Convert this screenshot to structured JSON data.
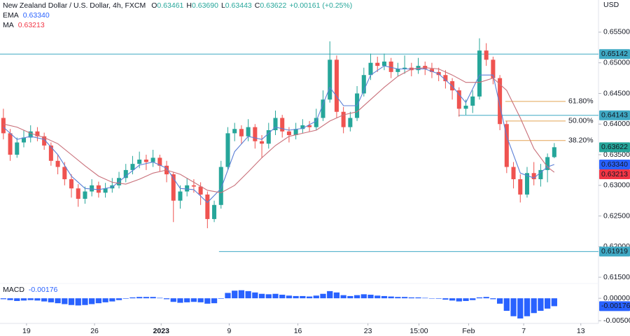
{
  "chart_data": {
    "type": "candlestick",
    "title": "New Zealand Dollar / U.S. Dollar, 4h, FXCM",
    "ohlc_legend": [
      {
        "key": "O",
        "value": "0.63461"
      },
      {
        "key": "H",
        "value": "0.63690"
      },
      {
        "key": "L",
        "value": "0.63443"
      },
      {
        "key": "C",
        "value": "0.63622"
      }
    ],
    "change": "+0.00161 (+0.25%)",
    "axis_unit": "USD",
    "up_color": "#26a69a",
    "down_color": "#ef5350",
    "xlim": [
      0,
      88
    ],
    "xticks": [
      {
        "value": 3.9,
        "label": "19"
      },
      {
        "value": 13.9,
        "label": "26"
      },
      {
        "value": 23.7,
        "label": "2023"
      },
      {
        "value": 33.7,
        "label": "9"
      },
      {
        "value": 43.8,
        "label": "16"
      },
      {
        "value": 54.1,
        "label": "23"
      },
      {
        "value": 61.6,
        "label": "15:00"
      },
      {
        "value": 68.9,
        "label": "Feb"
      },
      {
        "value": 77,
        "label": "7"
      },
      {
        "value": 85.4,
        "label": "13"
      }
    ],
    "ylim": [
      0.61398,
      0.66025
    ],
    "yticks": [
      {
        "value": 0.655,
        "label": "0.65500"
      },
      {
        "value": 0.65,
        "label": "0.65000"
      },
      {
        "value": 0.645,
        "label": "0.64500"
      },
      {
        "value": 0.64,
        "label": "0.64000"
      },
      {
        "value": 0.635,
        "label": "0.63500"
      },
      {
        "value": 0.63,
        "label": "0.63000"
      },
      {
        "value": 0.625,
        "label": "0.62500"
      },
      {
        "value": 0.62,
        "label": "0.62000"
      },
      {
        "value": 0.615,
        "label": "0.61500"
      }
    ],
    "grid": false,
    "open": [
      0.641,
      0.6385,
      0.635,
      0.637,
      0.6378,
      0.6388,
      0.638,
      0.6365,
      0.634,
      0.633,
      0.631,
      0.6295,
      0.6278,
      0.629,
      0.63,
      0.6288,
      0.6295,
      0.63,
      0.6312,
      0.6325,
      0.6335,
      0.6342,
      0.6338,
      0.6345,
      0.6332,
      0.6318,
      0.6275,
      0.629,
      0.63,
      0.6298,
      0.6285,
      0.6245,
      0.6268,
      0.633,
      0.6385,
      0.6392,
      0.638,
      0.6395,
      0.6372,
      0.6368,
      0.639,
      0.641,
      0.6388,
      0.6382,
      0.6392,
      0.6398,
      0.6395,
      0.641,
      0.644,
      0.6505,
      0.642,
      0.6395,
      0.641,
      0.645,
      0.648,
      0.65,
      0.6495,
      0.6502,
      0.6485,
      0.649,
      0.6492,
      0.6488,
      0.6495,
      0.649,
      0.6485,
      0.648,
      0.647,
      0.6455,
      0.6425,
      0.643,
      0.6445,
      0.652,
      0.6505,
      0.6475,
      0.64,
      0.633,
      0.631,
      0.6285,
      0.632,
      0.631,
      0.6325,
      0.63461
    ],
    "high": [
      0.6425,
      0.6392,
      0.6378,
      0.639,
      0.6398,
      0.6395,
      0.6386,
      0.637,
      0.635,
      0.6338,
      0.6318,
      0.6302,
      0.6298,
      0.631,
      0.6306,
      0.6304,
      0.6312,
      0.6322,
      0.6335,
      0.6348,
      0.6355,
      0.635,
      0.6358,
      0.635,
      0.634,
      0.6322,
      0.63,
      0.6312,
      0.631,
      0.6305,
      0.629,
      0.6275,
      0.634,
      0.6395,
      0.6402,
      0.6398,
      0.6408,
      0.64,
      0.6382,
      0.6402,
      0.6422,
      0.6415,
      0.6395,
      0.6402,
      0.6408,
      0.6405,
      0.6425,
      0.6455,
      0.6535,
      0.6512,
      0.6428,
      0.642,
      0.6462,
      0.6492,
      0.6515,
      0.651,
      0.6515,
      0.6508,
      0.65,
      0.6512,
      0.65,
      0.6508,
      0.6502,
      0.65,
      0.6492,
      0.6488,
      0.6475,
      0.646,
      0.644,
      0.6455,
      0.654,
      0.6532,
      0.651,
      0.648,
      0.6405,
      0.6338,
      0.6318,
      0.633,
      0.6338,
      0.6335,
      0.6352,
      0.6369
    ],
    "low": [
      0.6375,
      0.634,
      0.6345,
      0.6362,
      0.637,
      0.6372,
      0.6358,
      0.6332,
      0.6318,
      0.63,
      0.628,
      0.6265,
      0.627,
      0.6282,
      0.628,
      0.628,
      0.6288,
      0.6295,
      0.6305,
      0.6318,
      0.6328,
      0.6325,
      0.633,
      0.6322,
      0.6305,
      0.624,
      0.6262,
      0.6282,
      0.6288,
      0.6268,
      0.623,
      0.624,
      0.6262,
      0.6325,
      0.6372,
      0.6368,
      0.6372,
      0.636,
      0.6345,
      0.636,
      0.6382,
      0.6378,
      0.637,
      0.6375,
      0.6385,
      0.6388,
      0.639,
      0.6405,
      0.6435,
      0.641,
      0.6385,
      0.6388,
      0.6405,
      0.6445,
      0.6472,
      0.6485,
      0.6488,
      0.6475,
      0.6478,
      0.6482,
      0.6478,
      0.6482,
      0.648,
      0.6475,
      0.647,
      0.6458,
      0.644,
      0.6412,
      0.6415,
      0.6418,
      0.644,
      0.6495,
      0.6465,
      0.639,
      0.632,
      0.6295,
      0.6272,
      0.628,
      0.63,
      0.6298,
      0.6305,
      0.63443
    ],
    "close": [
      0.6385,
      0.635,
      0.637,
      0.6378,
      0.6388,
      0.638,
      0.6365,
      0.634,
      0.633,
      0.631,
      0.6295,
      0.6278,
      0.629,
      0.63,
      0.6288,
      0.6295,
      0.63,
      0.6312,
      0.6325,
      0.6335,
      0.6342,
      0.6338,
      0.6345,
      0.6332,
      0.6318,
      0.6275,
      0.629,
      0.63,
      0.6298,
      0.6285,
      0.6245,
      0.6268,
      0.633,
      0.6385,
      0.6392,
      0.638,
      0.6395,
      0.6372,
      0.6368,
      0.639,
      0.641,
      0.6388,
      0.6382,
      0.6392,
      0.6398,
      0.6395,
      0.641,
      0.644,
      0.6505,
      0.642,
      0.6395,
      0.641,
      0.645,
      0.648,
      0.65,
      0.6495,
      0.6502,
      0.6485,
      0.649,
      0.6492,
      0.6488,
      0.6495,
      0.649,
      0.6485,
      0.648,
      0.647,
      0.6455,
      0.6425,
      0.643,
      0.6445,
      0.652,
      0.6505,
      0.6475,
      0.64,
      0.633,
      0.631,
      0.6285,
      0.632,
      0.631,
      0.6325,
      0.63461,
      0.63622
    ],
    "last_label": {
      "value": 0.63622,
      "label": "0.63622"
    },
    "line_x": [
      0.5,
      2.5,
      4.5,
      6.5,
      8.5,
      10.5,
      12.5,
      14.5,
      16.5,
      18.5,
      20.5,
      22.5,
      24.5,
      26.5,
      28.5,
      30.5,
      32.5,
      34.5,
      36.5,
      38.5,
      40.5,
      42.5,
      44.5,
      46.5,
      48.5,
      50.5,
      52.5,
      54.5,
      56.5,
      58.5,
      60.5,
      62.5,
      64.5,
      66.5,
      68.5,
      70.5,
      72.5,
      74.5,
      76.5,
      78.5,
      80.5,
      81.5
    ],
    "overlays": [
      {
        "name": "EMA",
        "color": "#5b7fd6",
        "tag_color": "#2962ff",
        "last_label": "0.63340",
        "values": [
          0.6395,
          0.6375,
          0.638,
          0.6375,
          0.635,
          0.6315,
          0.6295,
          0.6293,
          0.6297,
          0.6315,
          0.6333,
          0.6338,
          0.6328,
          0.6295,
          0.6293,
          0.6272,
          0.6295,
          0.6355,
          0.638,
          0.6375,
          0.6395,
          0.639,
          0.6393,
          0.6405,
          0.646,
          0.643,
          0.643,
          0.648,
          0.6495,
          0.649,
          0.649,
          0.649,
          0.6482,
          0.6462,
          0.6435,
          0.648,
          0.648,
          0.638,
          0.632,
          0.6312,
          0.633,
          0.6334
        ]
      },
      {
        "name": "MA",
        "color": "#c9707a",
        "tag_color": "#f23645",
        "last_label": "0.63213",
        "values": [
          0.64,
          0.6395,
          0.6385,
          0.6378,
          0.6368,
          0.635,
          0.6332,
          0.6315,
          0.6305,
          0.6302,
          0.631,
          0.632,
          0.6325,
          0.6318,
          0.6305,
          0.6292,
          0.6288,
          0.63,
          0.6322,
          0.6345,
          0.6365,
          0.638,
          0.6385,
          0.639,
          0.6405,
          0.6415,
          0.642,
          0.644,
          0.646,
          0.6478,
          0.649,
          0.6492,
          0.649,
          0.648,
          0.6468,
          0.6468,
          0.6475,
          0.6455,
          0.641,
          0.636,
          0.633,
          0.63213
        ]
      }
    ],
    "levels": [
      {
        "value": 0.65142,
        "label": "0.65142",
        "start": 0
      },
      {
        "value": 0.64143,
        "label": "0.64143",
        "start": 67.4
      },
      {
        "value": 0.61919,
        "label": "0.61919",
        "start": 32.2
      }
    ],
    "level_color": "#3fa9c4",
    "fib_color": "#e3a455",
    "fib_start": 74.3,
    "fib_levels": [
      {
        "ratio": 61.8,
        "label": "61.80%",
        "price": 0.6437
      },
      {
        "ratio": 50,
        "label": "50.00%",
        "price": 0.6405
      },
      {
        "ratio": 38.2,
        "label": "38.20%",
        "price": 0.63731
      }
    ],
    "macd": {
      "name": "MACD",
      "last_label": "-0.00176",
      "color": "#2962ff",
      "ylim": [
        -0.0056,
        0.0033
      ],
      "yticks": [
        {
          "value": 0,
          "label": "0.00000"
        },
        {
          "value": -0.005,
          "label": "-0.00500"
        }
      ],
      "tag": {
        "value": -0.00176,
        "label": "-0.00176"
      },
      "values": [
        -0.0002,
        -0.0004,
        -0.0006,
        -0.0005,
        -0.0004,
        -0.0005,
        -0.0007,
        -0.0009,
        -0.0011,
        -0.0013,
        -0.0015,
        -0.0016,
        -0.0015,
        -0.0013,
        -0.0011,
        -0.0009,
        -0.0007,
        -0.0004,
        -0.0001,
        0.0002,
        0.0003,
        0.0003,
        0.0003,
        0.0001,
        -0.0002,
        -0.0008,
        -0.001,
        -0.0009,
        -0.0008,
        -0.0009,
        -0.0012,
        -0.0011,
        -0.0001,
        0.0012,
        0.0017,
        0.0018,
        0.0016,
        0.0013,
        0.001,
        0.0009,
        0.001,
        0.0008,
        0.0006,
        0.0005,
        0.0005,
        0.0004,
        0.0006,
        0.001,
        0.0016,
        0.0013,
        0.0007,
        0.0005,
        0.0007,
        0.0009,
        0.0008,
        0.0006,
        0.0005,
        0.0004,
        0.0003,
        0.0003,
        0.0002,
        0.0002,
        0.0001,
        0,
        -0.0001,
        -0.0003,
        -0.0005,
        -0.0007,
        -0.0006,
        -0.0004,
        0.0002,
        0.0003,
        -0.0002,
        -0.0012,
        -0.0028,
        -0.004,
        -0.0045,
        -0.004,
        -0.0033,
        -0.0028,
        -0.0023,
        -0.00176
      ]
    }
  }
}
